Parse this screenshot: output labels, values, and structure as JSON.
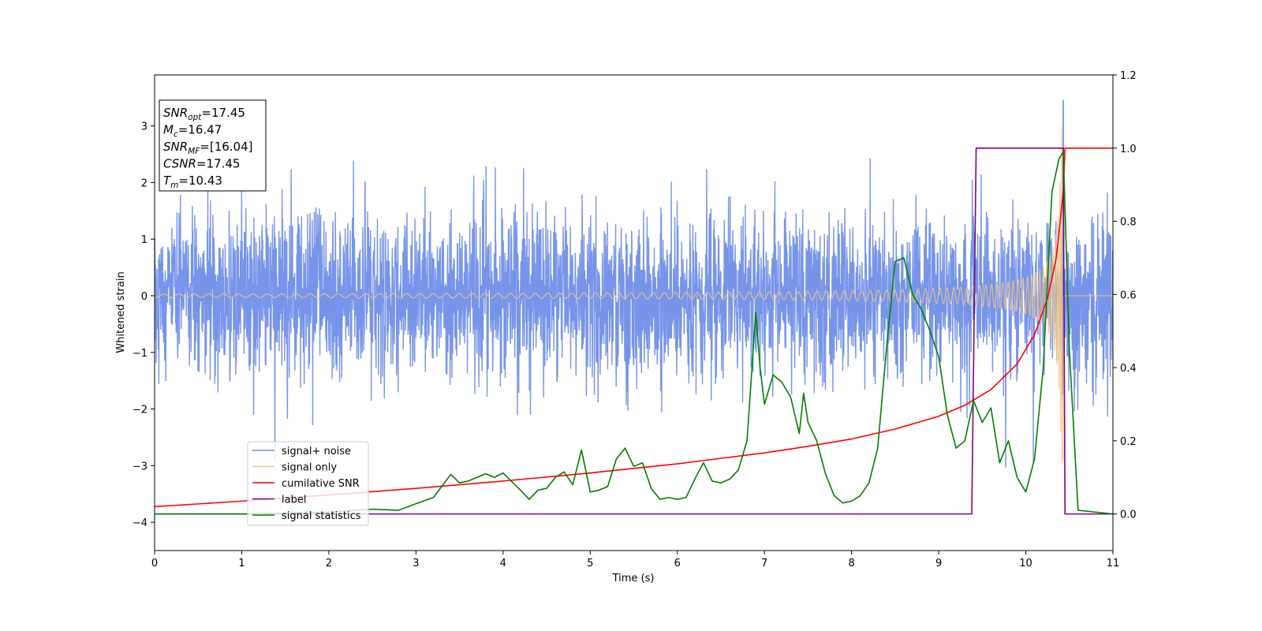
{
  "chart_data": {
    "type": "line",
    "xlabel": "Time (s)",
    "ylabel": "Whitened strain",
    "xlim": [
      0,
      11
    ],
    "ylim_left": [
      -4.5,
      3.9
    ],
    "ylim_right": [
      -0.1,
      1.2
    ],
    "x_ticks": [
      0,
      1,
      2,
      3,
      4,
      5,
      6,
      7,
      8,
      9,
      10,
      11
    ],
    "y_ticks_left": [
      {
        "value": 3,
        "label": "3"
      },
      {
        "value": 2,
        "label": "2"
      },
      {
        "value": 1,
        "label": "1"
      },
      {
        "value": 0,
        "label": "0"
      },
      {
        "value": -1,
        "label": "−1"
      },
      {
        "value": -2,
        "label": "−2"
      },
      {
        "value": -3,
        "label": "−3"
      },
      {
        "value": -4,
        "label": "−4"
      }
    ],
    "y_ticks_right": [
      {
        "value": 1.2,
        "label": "1.2"
      },
      {
        "value": 1.0,
        "label": "1.0"
      },
      {
        "value": 0.8,
        "label": "0.8"
      },
      {
        "value": 0.6,
        "label": "0.6"
      },
      {
        "value": 0.4,
        "label": "0.4"
      },
      {
        "value": 0.2,
        "label": "0.2"
      },
      {
        "value": 0.0,
        "label": "0.0"
      }
    ],
    "info_box": [
      {
        "var": "SNR",
        "sub": "opt",
        "value": "=17.45"
      },
      {
        "var": "M",
        "sub": "c",
        "value": "=16.47"
      },
      {
        "var": "SNR",
        "sub": "MF",
        "value": "=[16.04]"
      },
      {
        "var": "CSNR",
        "sub": "",
        "value": "=17.45"
      },
      {
        "var": "T",
        "sub": "m",
        "value": "=10.43"
      }
    ],
    "legend": {
      "placement": "lower-left",
      "entries": [
        {
          "label": "signal+ noise",
          "color": "#6f8ee8"
        },
        {
          "label": "signal only",
          "color": "#f5c77e"
        },
        {
          "label": "cumilative SNR",
          "color": "#ff0000"
        },
        {
          "label": "label",
          "color": "#800080"
        },
        {
          "label": "signal statistics",
          "color": "#008000"
        }
      ]
    },
    "series": [
      {
        "axis": "left",
        "color": "#6f8ee8",
        "kind": "noise",
        "noise_std": 0.72,
        "signal_amplitude": 0.03,
        "peak": 3.5,
        "peak_time": 10.43
      },
      {
        "axis": "left",
        "color": "#f5c77e",
        "kind": "chirp",
        "amplitude_start": 0.03,
        "amplitude_peak": 3.0,
        "merger_time": 10.43
      },
      {
        "axis": "right",
        "color": "#ff0000",
        "x": [
          0,
          1,
          2,
          3,
          4,
          5,
          6,
          7,
          7.5,
          8,
          8.5,
          9,
          9.3,
          9.6,
          9.9,
          10.1,
          10.25,
          10.35,
          10.43,
          10.45,
          11
        ],
        "values": [
          0.02,
          0.035,
          0.052,
          0.07,
          0.09,
          0.112,
          0.137,
          0.167,
          0.185,
          0.205,
          0.232,
          0.267,
          0.297,
          0.34,
          0.41,
          0.49,
          0.59,
          0.7,
          0.88,
          1.0,
          1.0
        ]
      },
      {
        "axis": "right",
        "color": "#800080",
        "x": [
          0,
          9.38,
          9.43,
          10.43,
          10.45,
          11
        ],
        "values": [
          0.0,
          0.0,
          1.0,
          1.0,
          0.0,
          0.0
        ]
      },
      {
        "axis": "right",
        "color": "#008000",
        "x": [
          0,
          1,
          1.5,
          2,
          2.5,
          2.8,
          3.0,
          3.2,
          3.4,
          3.5,
          3.6,
          3.8,
          3.9,
          4.0,
          4.2,
          4.3,
          4.4,
          4.5,
          4.6,
          4.7,
          4.8,
          4.9,
          5.0,
          5.1,
          5.2,
          5.3,
          5.4,
          5.5,
          5.6,
          5.7,
          5.8,
          5.9,
          6.0,
          6.1,
          6.2,
          6.3,
          6.4,
          6.5,
          6.6,
          6.7,
          6.8,
          6.9,
          6.95,
          7.0,
          7.1,
          7.2,
          7.3,
          7.4,
          7.45,
          7.5,
          7.6,
          7.7,
          7.8,
          7.9,
          8.0,
          8.1,
          8.2,
          8.3,
          8.4,
          8.5,
          8.6,
          8.7,
          8.8,
          8.9,
          9.0,
          9.1,
          9.2,
          9.3,
          9.4,
          9.5,
          9.6,
          9.7,
          9.8,
          9.9,
          10.0,
          10.1,
          10.2,
          10.3,
          10.38,
          10.43,
          10.5,
          10.6,
          11
        ],
        "values": [
          0.0,
          0.0,
          0.002,
          0.005,
          0.013,
          0.01,
          0.028,
          0.045,
          0.108,
          0.085,
          0.09,
          0.11,
          0.1,
          0.112,
          0.065,
          0.04,
          0.065,
          0.07,
          0.1,
          0.115,
          0.08,
          0.175,
          0.06,
          0.065,
          0.075,
          0.15,
          0.18,
          0.13,
          0.14,
          0.07,
          0.04,
          0.045,
          0.04,
          0.045,
          0.095,
          0.14,
          0.09,
          0.085,
          0.095,
          0.12,
          0.2,
          0.55,
          0.4,
          0.3,
          0.38,
          0.36,
          0.32,
          0.22,
          0.33,
          0.25,
          0.2,
          0.11,
          0.05,
          0.03,
          0.035,
          0.05,
          0.085,
          0.18,
          0.45,
          0.69,
          0.7,
          0.6,
          0.56,
          0.5,
          0.43,
          0.27,
          0.18,
          0.2,
          0.31,
          0.25,
          0.29,
          0.14,
          0.2,
          0.1,
          0.06,
          0.15,
          0.4,
          0.88,
          0.97,
          0.99,
          0.45,
          0.01,
          0.0
        ]
      }
    ]
  }
}
